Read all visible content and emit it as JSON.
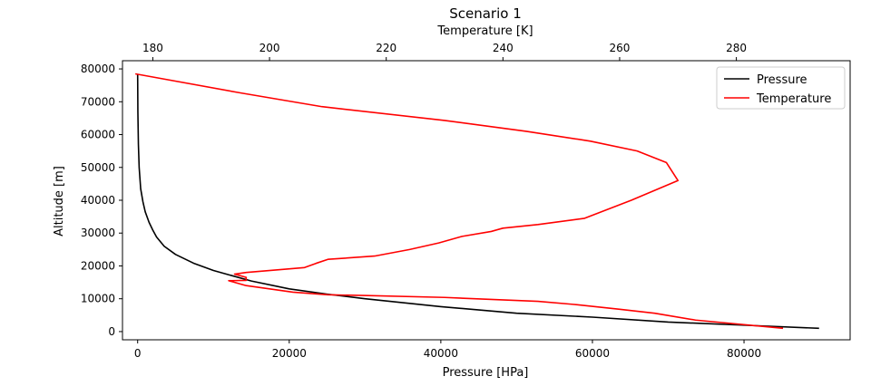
{
  "chart_data": {
    "type": "line",
    "title": "Scenario 1",
    "xlabel": "Pressure [HPa]",
    "x2label": "Temperature [K]",
    "ylabel": "Altitude [m]",
    "xlim": [
      -2000,
      94000
    ],
    "x2lim": [
      174.8,
      299.5
    ],
    "ylim": [
      -2500,
      82500
    ],
    "xticks": [
      0,
      20000,
      40000,
      60000,
      80000
    ],
    "x2ticks": [
      180,
      200,
      220,
      240,
      260,
      280
    ],
    "yticks": [
      0,
      10000,
      20000,
      30000,
      40000,
      50000,
      60000,
      70000,
      80000
    ],
    "legend": {
      "placement": "top-right"
    },
    "grid": false,
    "series": [
      {
        "name": "Pressure",
        "color": "#000000",
        "axis": "bottom",
        "x": [
          89900,
          80000,
          70000,
          60000,
          50000,
          40000,
          30000,
          25000,
          20000,
          15000,
          10000,
          7500,
          5000,
          3500,
          2500,
          2000,
          1500,
          1000,
          700,
          400,
          200,
          100,
          30,
          0
        ],
        "y": [
          1000,
          1950,
          2900,
          4400,
          5600,
          7600,
          10000,
          11400,
          13000,
          15400,
          18600,
          20700,
          23500,
          26000,
          28800,
          30900,
          33300,
          36500,
          39500,
          43500,
          50000,
          57000,
          67000,
          78500
        ]
      },
      {
        "name": "Temperature",
        "color": "#ff0000",
        "axis": "top",
        "x": [
          288,
          273,
          266,
          260,
          252,
          246,
          230,
          216,
          210,
          204,
          200,
          196,
          193,
          196,
          196,
          194,
          196,
          206,
          208,
          210,
          218,
          224,
          229,
          233,
          238,
          240,
          246,
          254,
          262,
          270,
          268,
          263,
          255,
          244,
          230,
          209,
          195,
          177
        ],
        "y": [
          1000,
          3500,
          5600,
          6800,
          8300,
          9200,
          10400,
          11000,
          11200,
          12000,
          13000,
          14000,
          15500,
          15600,
          16500,
          17500,
          18000,
          19500,
          20800,
          22000,
          23000,
          25000,
          27000,
          29000,
          30500,
          31500,
          32600,
          34500,
          40000,
          46000,
          51500,
          55000,
          58000,
          61000,
          64300,
          68500,
          72700,
          78500
        ]
      }
    ]
  }
}
